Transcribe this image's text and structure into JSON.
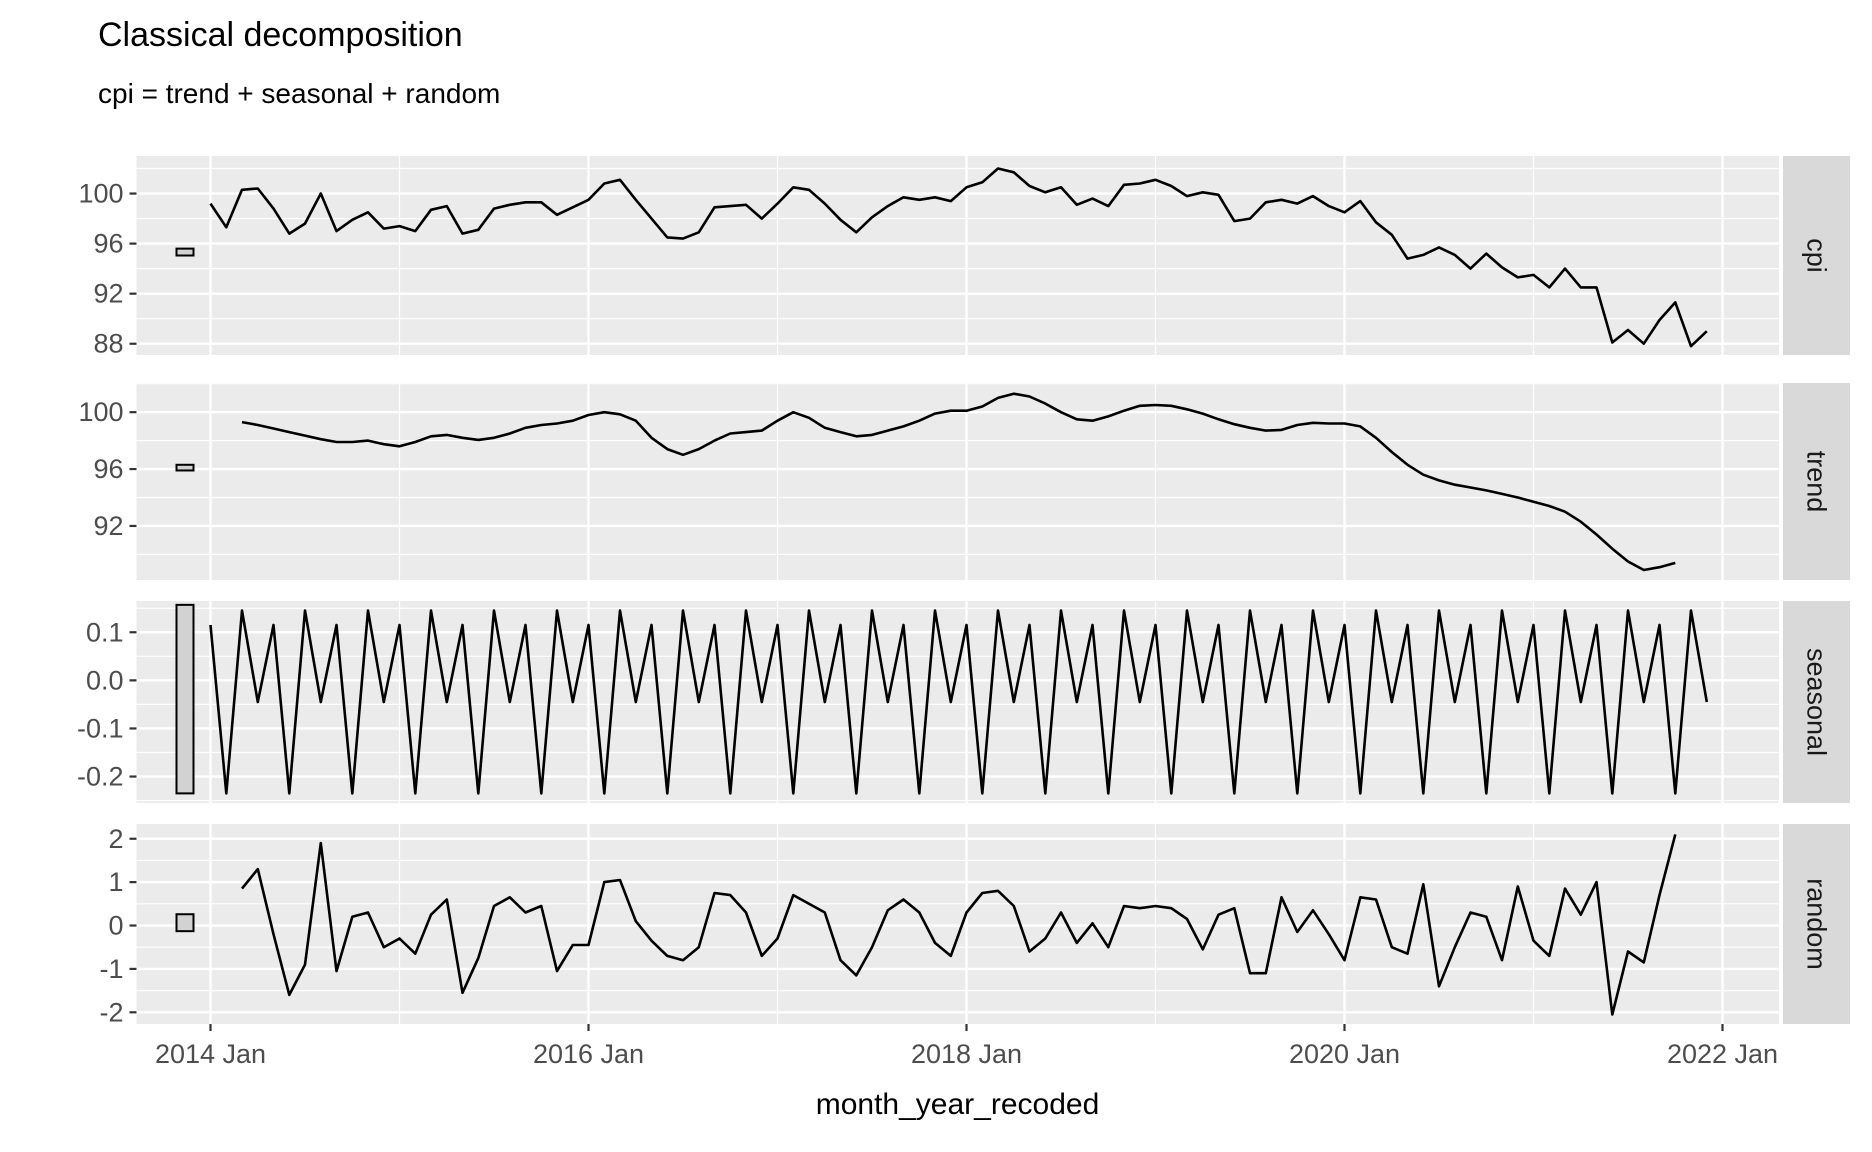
{
  "title": "Classical decomposition",
  "subtitle": "cpi = trend + seasonal + random",
  "x_axis": {
    "title": "month_year_recoded",
    "ticks": [
      {
        "label": "2014 Jan",
        "month": 0
      },
      {
        "label": "2016 Jan",
        "month": 24
      },
      {
        "label": "2018 Jan",
        "month": 48
      },
      {
        "label": "2020 Jan",
        "month": 72
      },
      {
        "label": "2022 Jan",
        "month": 96
      }
    ],
    "minor_tick_months": [
      12,
      36,
      60,
      84
    ]
  },
  "colors": {
    "panel_background": "#EBEBEB",
    "gridline": "#FFFFFF",
    "line": "#000000",
    "strip_background": "#D9D9D9",
    "strip_text": "#1A1A1A",
    "tick_label": "#4D4D4D",
    "tick_mark": "#333333",
    "scale_bar_fill": "#D2D2D2",
    "scale_bar_border": "#000000"
  },
  "chart_data": {
    "type": "line",
    "title": "Classical decomposition",
    "subtitle": "cpi = trend + seasonal + random",
    "xlabel": "month_year_recoded",
    "x_start": "2013 Dec",
    "x_first_data_month": "2014 Jan",
    "x_step": "1 month",
    "legend": "none",
    "grid": "on",
    "facets": [
      {
        "id": "cpi",
        "label": "cpi",
        "start_month": 0,
        "ylim": [
          87.1,
          103.0
        ],
        "yticks": [
          {
            "v": 100,
            "label": "100"
          },
          {
            "v": 96,
            "label": "96"
          },
          {
            "v": 92,
            "label": "92"
          },
          {
            "v": 88,
            "label": "88"
          }
        ],
        "minor_gridlines": [
          102,
          98,
          94,
          90
        ],
        "scale_bar_range": [
          95.6,
          95.05
        ],
        "values": [
          99.2,
          97.3,
          100.3,
          100.4,
          98.8,
          96.8,
          97.6,
          100.0,
          97.0,
          97.9,
          98.5,
          97.2,
          97.4,
          97.0,
          98.7,
          99.0,
          96.8,
          97.1,
          98.8,
          99.1,
          99.3,
          99.3,
          98.3,
          98.9,
          99.5,
          100.8,
          101.1,
          99.5,
          98.0,
          96.5,
          96.4,
          96.9,
          98.9,
          99.0,
          99.1,
          98.0,
          99.2,
          100.5,
          100.3,
          99.2,
          97.9,
          96.9,
          98.1,
          99.0,
          99.7,
          99.5,
          99.7,
          99.4,
          100.5,
          100.9,
          102.0,
          101.7,
          100.6,
          100.1,
          100.5,
          99.1,
          99.6,
          99.0,
          100.7,
          100.8,
          101.1,
          100.6,
          99.8,
          100.1,
          99.9,
          97.8,
          98.0,
          99.3,
          99.5,
          99.2,
          99.8,
          99.0,
          98.5,
          99.4,
          97.7,
          96.7,
          94.8,
          95.1,
          95.7,
          95.1,
          94.0,
          95.2,
          94.1,
          93.3,
          93.5,
          92.5,
          94.0,
          92.5,
          92.5,
          88.1,
          89.1,
          88.0,
          89.9,
          91.3,
          87.8,
          89.0
        ]
      },
      {
        "id": "trend",
        "label": "trend",
        "start_month": 2,
        "ylim": [
          88.2,
          102.05
        ],
        "yticks": [
          {
            "v": 100,
            "label": "100"
          },
          {
            "v": 96,
            "label": "96"
          },
          {
            "v": 92,
            "label": "92"
          }
        ],
        "minor_gridlines": [
          102,
          98,
          94,
          90
        ],
        "scale_bar_range": [
          96.3,
          95.9
        ],
        "values": [
          99.3,
          99.1,
          98.85,
          98.6,
          98.35,
          98.1,
          97.9,
          97.9,
          98.0,
          97.75,
          97.6,
          97.9,
          98.3,
          98.4,
          98.2,
          98.05,
          98.2,
          98.5,
          98.9,
          99.1,
          99.2,
          99.4,
          99.8,
          100.0,
          99.85,
          99.4,
          98.2,
          97.4,
          97.0,
          97.4,
          98.0,
          98.5,
          98.6,
          98.7,
          99.4,
          100.0,
          99.6,
          98.9,
          98.6,
          98.3,
          98.4,
          98.7,
          99.0,
          99.4,
          99.9,
          100.1,
          100.1,
          100.4,
          101.0,
          101.3,
          101.1,
          100.6,
          100.0,
          99.5,
          99.4,
          99.7,
          100.1,
          100.45,
          100.5,
          100.45,
          100.2,
          99.9,
          99.5,
          99.15,
          98.9,
          98.7,
          98.75,
          99.1,
          99.25,
          99.2,
          99.2,
          99.0,
          98.2,
          97.2,
          96.3,
          95.6,
          95.2,
          94.9,
          94.7,
          94.5,
          94.25,
          94.0,
          93.7,
          93.4,
          93.0,
          92.3,
          91.4,
          90.4,
          89.5,
          88.9,
          89.1,
          89.4
        ]
      },
      {
        "id": "seasonal",
        "label": "seasonal",
        "start_month": 0,
        "ylim": [
          -0.255,
          0.165
        ],
        "yticks": [
          {
            "v": 0.1,
            "label": "0.1"
          },
          {
            "v": 0.0,
            "label": "0.0"
          },
          {
            "v": -0.1,
            "label": "-0.1"
          },
          {
            "v": -0.2,
            "label": "-0.2"
          }
        ],
        "minor_gridlines": [
          0.15,
          0.05,
          -0.05,
          -0.15,
          -0.25
        ],
        "scale_bar_range": [
          0.157,
          -0.235
        ],
        "values": [
          0.115,
          -0.235,
          0.145,
          -0.045,
          0.115,
          -0.235,
          0.145,
          -0.045,
          0.115,
          -0.235,
          0.145,
          -0.045,
          0.115,
          -0.235,
          0.145,
          -0.045,
          0.115,
          -0.235,
          0.145,
          -0.045,
          0.115,
          -0.235,
          0.145,
          -0.045,
          0.115,
          -0.235,
          0.145,
          -0.045,
          0.115,
          -0.235,
          0.145,
          -0.045,
          0.115,
          -0.235,
          0.145,
          -0.045,
          0.115,
          -0.235,
          0.145,
          -0.045,
          0.115,
          -0.235,
          0.145,
          -0.045,
          0.115,
          -0.235,
          0.145,
          -0.045,
          0.115,
          -0.235,
          0.145,
          -0.045,
          0.115,
          -0.235,
          0.145,
          -0.045,
          0.115,
          -0.235,
          0.145,
          -0.045,
          0.115,
          -0.235,
          0.145,
          -0.045,
          0.115,
          -0.235,
          0.145,
          -0.045,
          0.115,
          -0.235,
          0.145,
          -0.045,
          0.115,
          -0.235,
          0.145,
          -0.045,
          0.115,
          -0.235,
          0.145,
          -0.045,
          0.115,
          -0.235,
          0.145,
          -0.045,
          0.115,
          -0.235,
          0.145,
          -0.045,
          0.115,
          -0.235,
          0.145,
          -0.045,
          0.115,
          -0.235,
          0.145,
          -0.045
        ]
      },
      {
        "id": "random",
        "label": "random",
        "start_month": 2,
        "ylim": [
          -2.27,
          2.34
        ],
        "yticks": [
          {
            "v": 2,
            "label": "2"
          },
          {
            "v": 1,
            "label": "1"
          },
          {
            "v": 0,
            "label": "0"
          },
          {
            "v": -1,
            "label": "-1"
          },
          {
            "v": -2,
            "label": "-2"
          }
        ],
        "minor_gridlines": [
          1.5,
          0.5,
          -0.5,
          -1.5
        ],
        "scale_bar_range": [
          0.26,
          -0.13
        ],
        "values": [
          0.85,
          1.3,
          -0.2,
          -1.6,
          -0.9,
          1.9,
          -1.05,
          0.2,
          0.3,
          -0.5,
          -0.3,
          -0.65,
          0.25,
          0.6,
          -1.55,
          -0.75,
          0.45,
          0.65,
          0.3,
          0.45,
          -1.05,
          -0.45,
          -0.45,
          1.0,
          1.05,
          0.1,
          -0.35,
          -0.7,
          -0.8,
          -0.5,
          0.75,
          0.7,
          0.3,
          -0.7,
          -0.3,
          0.7,
          0.5,
          0.3,
          -0.8,
          -1.15,
          -0.5,
          0.35,
          0.6,
          0.3,
          -0.4,
          -0.7,
          0.3,
          0.75,
          0.8,
          0.45,
          -0.6,
          -0.3,
          0.3,
          -0.4,
          0.05,
          -0.5,
          0.45,
          0.4,
          0.45,
          0.4,
          0.15,
          -0.55,
          0.25,
          0.4,
          -1.1,
          -1.1,
          0.65,
          -0.15,
          0.35,
          -0.2,
          -0.8,
          0.65,
          0.6,
          -0.5,
          -0.65,
          0.95,
          -1.4,
          -0.5,
          0.3,
          0.2,
          -0.8,
          0.9,
          -0.35,
          -0.7,
          0.85,
          0.25,
          1.0,
          -2.05,
          -0.6,
          -0.85,
          0.7,
          2.1
        ]
      }
    ]
  }
}
